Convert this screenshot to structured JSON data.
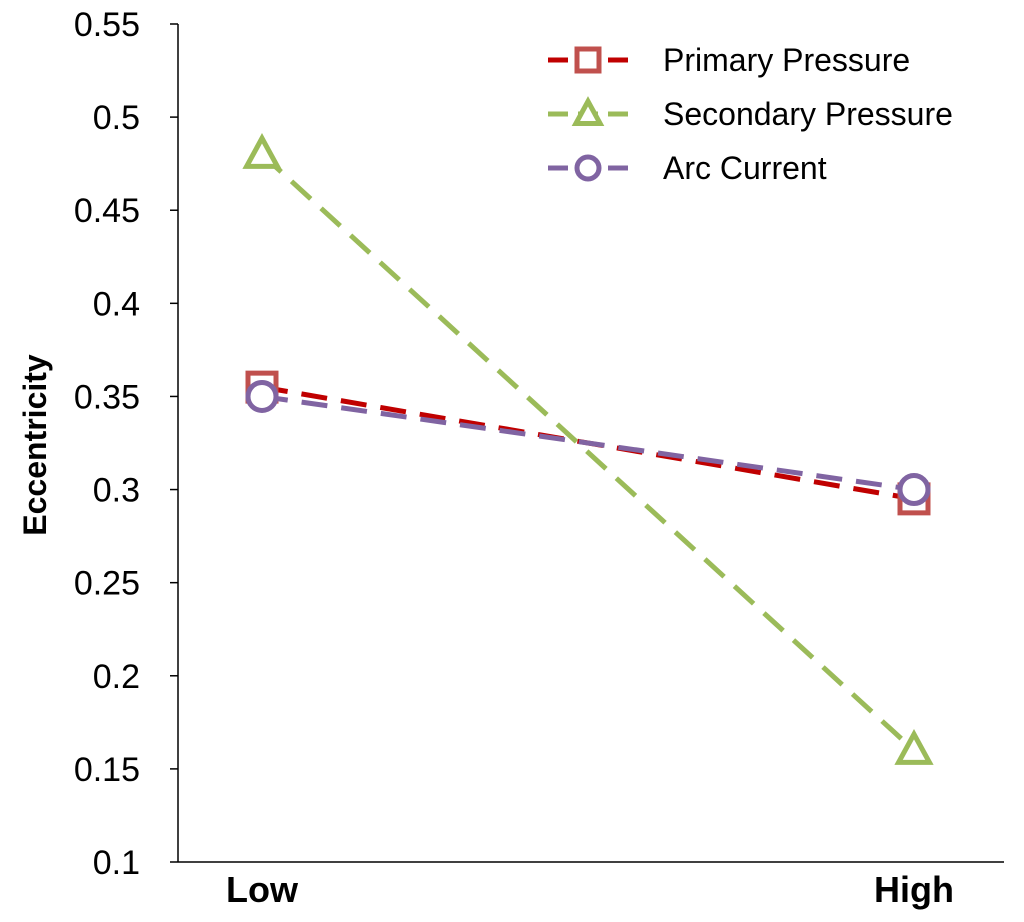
{
  "chart_data": {
    "type": "line",
    "categories": [
      "Low",
      "High"
    ],
    "ylabel": "Eccentricity",
    "xlabel": "",
    "ylim": [
      0.1,
      0.55
    ],
    "yticks": [
      "0.55",
      "0.5",
      "0.45",
      "0.4",
      "0.35",
      "0.3",
      "0.25",
      "0.2",
      "0.15",
      "0.1"
    ],
    "grid": false,
    "legend_position": "top-right",
    "series": [
      {
        "name": "Primary Pressure",
        "values": [
          0.355,
          0.295
        ],
        "color": "#c0504d",
        "line_color": "#c00000",
        "marker": "square",
        "line_style": "dashed"
      },
      {
        "name": "Secondary Pressure",
        "values": [
          0.48,
          0.16
        ],
        "color": "#9bbb59",
        "line_color": "#9bbb59",
        "marker": "triangle",
        "line_style": "dashed"
      },
      {
        "name": "Arc Current",
        "values": [
          0.35,
          0.3
        ],
        "color": "#8064a2",
        "line_color": "#8064a2",
        "marker": "circle",
        "line_style": "dashed"
      }
    ]
  }
}
